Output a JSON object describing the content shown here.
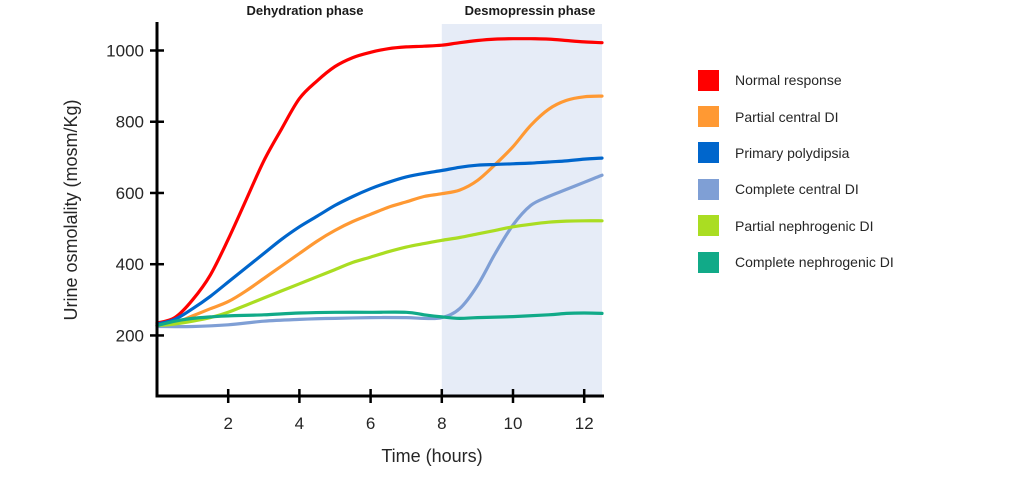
{
  "chart_data": {
    "type": "line",
    "title": "",
    "xlabel": "Time (hours)",
    "ylabel": "Urine osmolality (mosm/Kg)",
    "xlim": [
      0,
      12.5
    ],
    "ylim": [
      30,
      1080
    ],
    "xticks": [
      2,
      4,
      6,
      8,
      10,
      12
    ],
    "yticks": [
      200,
      400,
      600,
      800,
      1000
    ],
    "grid": false,
    "legend_position": "right",
    "annotations": [
      {
        "text": "Dehydration phase",
        "x_range": [
          0,
          8
        ]
      },
      {
        "text": "Desmopressin phase",
        "x_range": [
          8,
          12.5
        ]
      }
    ],
    "shaded_region": {
      "x_range": [
        8,
        12.5
      ],
      "label": "Desmopressin phase",
      "color": "#e6ecf7"
    },
    "series": [
      {
        "name": "Normal response",
        "color": "#ff0000",
        "x": [
          0,
          0.5,
          1,
          1.5,
          2,
          2.5,
          3,
          3.5,
          4,
          4.5,
          5,
          5.5,
          6,
          6.5,
          7,
          7.5,
          8,
          8.5,
          9,
          9.5,
          10,
          10.5,
          11,
          11.5,
          12,
          12.5
        ],
        "y": [
          235,
          250,
          300,
          370,
          470,
          580,
          690,
          780,
          865,
          915,
          955,
          980,
          995,
          1005,
          1010,
          1012,
          1015,
          1022,
          1028,
          1032,
          1033,
          1033,
          1032,
          1028,
          1024,
          1022
        ]
      },
      {
        "name": "Partial central DI",
        "color": "#ff9933",
        "x": [
          0,
          0.5,
          1,
          1.5,
          2,
          2.5,
          3,
          3.5,
          4,
          4.5,
          5,
          5.5,
          6,
          6.5,
          7,
          7.5,
          8,
          8.5,
          9,
          9.5,
          10,
          10.5,
          11,
          11.5,
          12,
          12.5
        ],
        "y": [
          228,
          235,
          255,
          275,
          295,
          325,
          360,
          395,
          430,
          465,
          495,
          520,
          540,
          560,
          575,
          590,
          598,
          608,
          635,
          680,
          730,
          790,
          835,
          860,
          870,
          872
        ]
      },
      {
        "name": "Primary polydipsia",
        "color": "#0066cc",
        "x": [
          0,
          0.5,
          1,
          1.5,
          2,
          2.5,
          3,
          3.5,
          4,
          4.5,
          5,
          5.5,
          6,
          6.5,
          7,
          7.5,
          8,
          8.5,
          9,
          9.5,
          10,
          10.5,
          11,
          11.5,
          12,
          12.5
        ],
        "y": [
          232,
          245,
          275,
          310,
          350,
          390,
          430,
          470,
          505,
          535,
          565,
          590,
          612,
          630,
          645,
          655,
          663,
          672,
          678,
          680,
          682,
          684,
          687,
          690,
          695,
          698
        ]
      },
      {
        "name": "Complete central DI",
        "color": "#7f9fd5",
        "x": [
          0,
          1,
          2,
          3,
          4,
          5,
          6,
          7,
          7.5,
          8,
          8.5,
          9,
          9.5,
          10,
          10.5,
          11,
          11.5,
          12,
          12.5
        ],
        "y": [
          225,
          225,
          230,
          240,
          245,
          248,
          250,
          250,
          248,
          250,
          275,
          340,
          430,
          510,
          565,
          590,
          610,
          630,
          650
        ]
      },
      {
        "name": "Partial nephrogenic DI",
        "color": "#aadd22",
        "x": [
          0,
          0.5,
          1,
          1.5,
          2,
          2.5,
          3,
          3.5,
          4,
          4.5,
          5,
          5.5,
          6,
          6.5,
          7,
          7.5,
          8,
          8.5,
          9,
          9.5,
          10,
          10.5,
          11,
          11.5,
          12,
          12.5
        ],
        "y": [
          228,
          232,
          240,
          250,
          265,
          285,
          305,
          325,
          345,
          365,
          385,
          405,
          420,
          435,
          448,
          458,
          467,
          475,
          485,
          495,
          505,
          512,
          518,
          521,
          522,
          522
        ]
      },
      {
        "name": "Complete nephrogenic DI",
        "color": "#11aa88",
        "x": [
          0,
          0.5,
          1,
          1.5,
          2,
          3,
          4,
          5,
          6,
          7,
          7.5,
          8,
          8.5,
          9,
          10,
          11,
          11.5,
          12,
          12.5
        ],
        "y": [
          228,
          240,
          248,
          252,
          255,
          258,
          263,
          265,
          265,
          265,
          258,
          252,
          248,
          250,
          253,
          258,
          262,
          263,
          262
        ]
      }
    ]
  }
}
